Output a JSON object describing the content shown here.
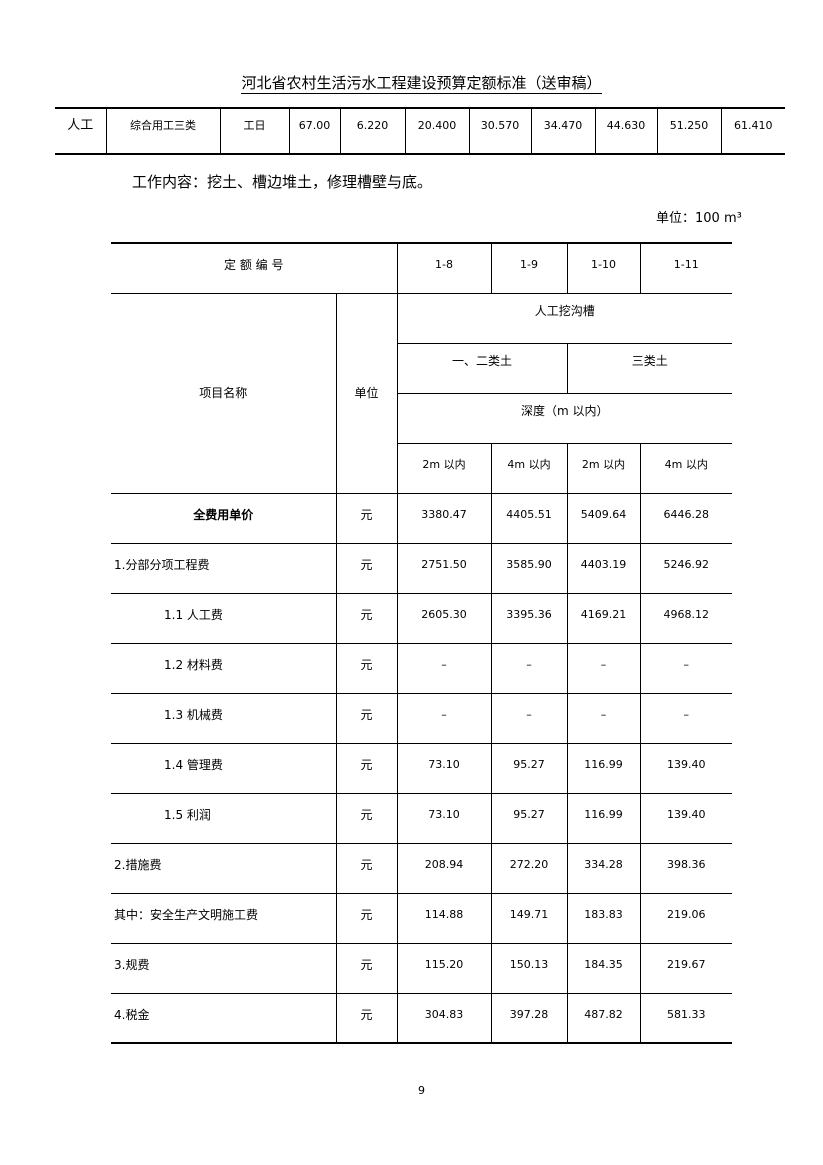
{
  "header_title": "河北省农村生活污水工程建设预算定额标准（送审稿）",
  "top_row": [
    "人工",
    "综合用工三类",
    "工日",
    "67.00",
    "6.220",
    "20.400",
    "30.570",
    "34.470",
    "44.630",
    "51.250",
    "61.410"
  ],
  "work_content": "工作内容：挖土、槽边堆土，修理槽壁与底。",
  "unit_note": "单位：100 m³",
  "table": {
    "code_label": "定 额 编 号",
    "codes": [
      "1-8",
      "1-9",
      "1-10",
      "1-11"
    ],
    "item_label": "项目名称",
    "unit_label": "单位",
    "group": "人工挖沟槽",
    "soil": [
      "一、二类土",
      "三类土"
    ],
    "depth_label": "深度（m 以内）",
    "depths": [
      "2m 以内",
      "4m 以内",
      "2m 以内",
      "4m 以内"
    ],
    "rows": [
      {
        "name": "全费用单价",
        "unit": "元",
        "values": [
          "3380.47",
          "4405.51",
          "5409.64",
          "6446.28"
        ]
      },
      {
        "name": "1.分部分项工程费",
        "unit": "元",
        "values": [
          "2751.50",
          "3585.90",
          "4403.19",
          "5246.92"
        ]
      },
      {
        "name": "1.1 人工费",
        "unit": "元",
        "values": [
          "2605.30",
          "3395.36",
          "4169.21",
          "4968.12"
        ]
      },
      {
        "name": "1.2 材料费",
        "unit": "元",
        "values": [
          "–",
          "–",
          "–",
          "–"
        ]
      },
      {
        "name": "1.3  机械费",
        "unit": "元",
        "values": [
          "–",
          "–",
          "–",
          "–"
        ]
      },
      {
        "name": "1.4 管理费",
        "unit": "元",
        "values": [
          "73.10",
          "95.27",
          "116.99",
          "139.40"
        ]
      },
      {
        "name": "1.5 利润",
        "unit": "元",
        "values": [
          "73.10",
          "95.27",
          "116.99",
          "139.40"
        ]
      },
      {
        "name": "2.措施费",
        "unit": "元",
        "values": [
          "208.94",
          "272.20",
          "334.28",
          "398.36"
        ]
      },
      {
        "name": "其中：安全生产文明施工费",
        "unit": "元",
        "values": [
          "114.88",
          "149.71",
          "183.83",
          "219.06"
        ]
      },
      {
        "name": "3.规费",
        "unit": "元",
        "values": [
          "115.20",
          "150.13",
          "184.35",
          "219.67"
        ]
      },
      {
        "name": "4.税金",
        "unit": "元",
        "values": [
          "304.83",
          "397.28",
          "487.82",
          "581.33"
        ]
      }
    ]
  },
  "page_number": "9"
}
